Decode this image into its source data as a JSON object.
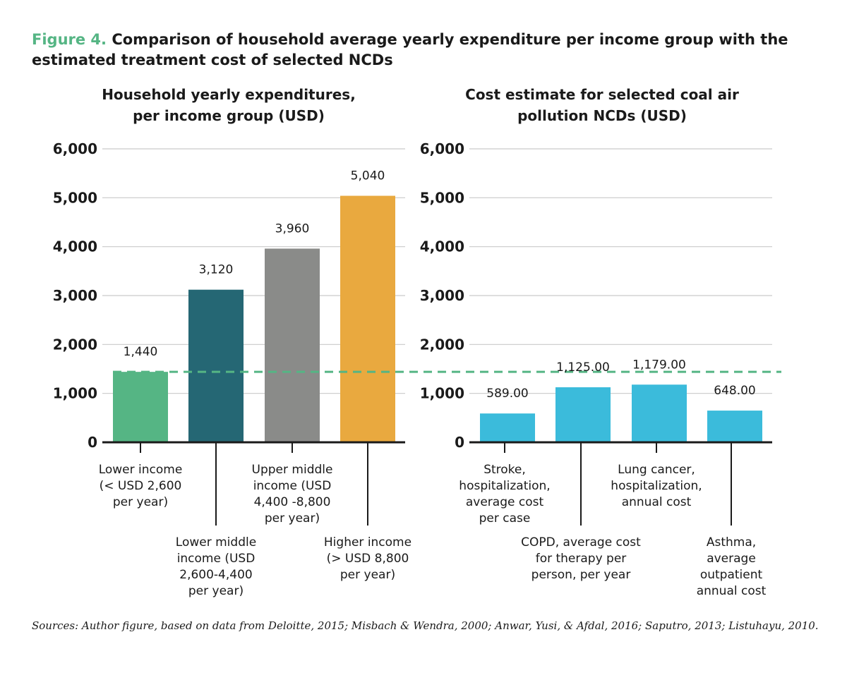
{
  "figure": {
    "number": "Figure 4.",
    "title": "Comparison of household average yearly expenditure per income group with the estimated treatment cost of selected NCDs"
  },
  "sources": "Sources: Author figure, based on data from Deloitte, 2015; Misbach & Wendra, 2000; Anwar, Yusi, & Afdal, 2016; Saputro, 2013; Listuhayu, 2010.",
  "chart_data": [
    {
      "type": "bar",
      "title": [
        "Household yearly expenditures,",
        "per income group (USD)"
      ],
      "ylim": [
        0,
        6000
      ],
      "yticks": [
        0,
        1000,
        2000,
        3000,
        4000,
        5000,
        6000
      ],
      "ytick_labels": [
        "0",
        "1,000",
        "2,000",
        "3,000",
        "4,000",
        "5,000",
        "6,000"
      ],
      "grid": true,
      "reference_line": {
        "value": 1440,
        "style": "dashed",
        "color": "#55b584"
      },
      "categories": [
        "Lower income (< USD 2,600 per year)",
        "Lower middle income (USD 2,600-4,400 per year)",
        "Upper middle income (USD 4,400 -8,800 per year)",
        "Higher income (> USD 8,800 per year)"
      ],
      "category_lines": [
        [
          "Lower income",
          "(< USD 2,600",
          "per year)"
        ],
        [
          "Lower middle",
          "income (USD",
          "2,600-4,400",
          "per year)"
        ],
        [
          "Upper middle",
          "income (USD",
          "4,400 -8,800",
          "per year)"
        ],
        [
          "Higher income",
          "(> USD 8,800",
          "per year)"
        ]
      ],
      "label_rows": [
        "top",
        "bottom",
        "top",
        "bottom"
      ],
      "values": [
        1440,
        3120,
        3960,
        5040
      ],
      "value_labels": [
        "1,440",
        "3,120",
        "3,960",
        "5,040"
      ],
      "colors": [
        "#55b584",
        "#256774",
        "#8a8b89",
        "#e9a93f"
      ]
    },
    {
      "type": "bar",
      "title": [
        "Cost estimate for selected coal air",
        "pollution NCDs (USD)"
      ],
      "ylim": [
        0,
        6000
      ],
      "yticks": [
        0,
        1000,
        2000,
        3000,
        4000,
        5000,
        6000
      ],
      "ytick_labels": [
        "0",
        "1,000",
        "2,000",
        "3,000",
        "4,000",
        "5,000",
        "6,000"
      ],
      "grid": true,
      "categories": [
        "Stroke, hospitalization, average cost per case",
        "COPD, average cost for therapy per person, per year",
        "Lung cancer, hospitalization, annual cost",
        "Asthma, average outpatient annual cost"
      ],
      "category_lines": [
        [
          "Stroke,",
          "hospitalization,",
          "average cost",
          "per case"
        ],
        [
          "COPD, average cost",
          "for therapy per",
          "person, per year"
        ],
        [
          "Lung cancer,",
          "hospitalization,",
          "annual cost"
        ],
        [
          "Asthma,",
          "average",
          "outpatient",
          "annual cost"
        ]
      ],
      "label_rows": [
        "top",
        "bottom",
        "top",
        "bottom"
      ],
      "values": [
        589,
        1125,
        1179,
        648
      ],
      "value_labels": [
        "589.00",
        "1,125.00",
        "1,179.00",
        "648.00"
      ],
      "colors": [
        "#3bbbdb",
        "#3bbbdb",
        "#3bbbdb",
        "#3bbbdb"
      ]
    }
  ]
}
